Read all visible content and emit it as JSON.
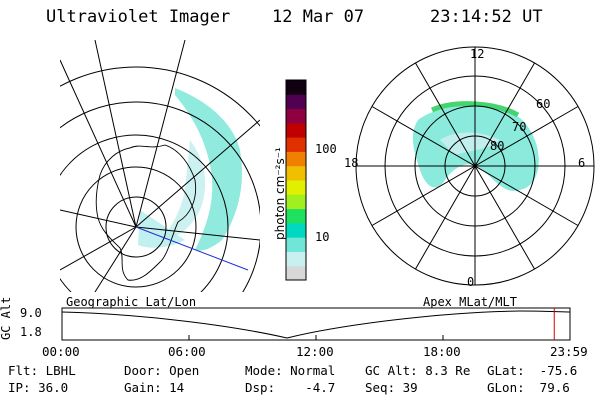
{
  "header": {
    "instrument": "Ultraviolet Imager",
    "date": "12 Mar 07",
    "time": "23:14:52 UT"
  },
  "colorbar": {
    "unit_label": "photon cm⁻²s⁻¹",
    "ticks": [
      "100",
      "10"
    ],
    "scale": "log",
    "colors": [
      "#d8d8d8",
      "#c8f0f0",
      "#70e6d8",
      "#00d8c0",
      "#20e060",
      "#a0f020",
      "#e0f000",
      "#f0c000",
      "#f08000",
      "#e03000",
      "#c00000",
      "#900040",
      "#500050",
      "#100010"
    ]
  },
  "left_map": {
    "caption": "Geographic Lat/Lon",
    "aurora_color": "#7de8d8"
  },
  "right_map": {
    "caption": "Apex MLat/MLT",
    "mlt_labels": {
      "top": "12",
      "bottom": "0",
      "left": "18",
      "right": "6"
    },
    "lat_labels": [
      "60",
      "70",
      "80"
    ],
    "aurora_color": "#7de8d8",
    "edge_color": "#30d060"
  },
  "altitude_plot": {
    "ylabel": "GC Alt",
    "y_ticks": [
      "9.0",
      "1.8"
    ],
    "x_ticks": [
      "00:00",
      "06:00",
      "12:00",
      "18:00",
      "23:59"
    ],
    "current_time_marker": 0.969,
    "marker_color": "#d00000"
  },
  "info": {
    "filter": "Flt: LBHL",
    "ip": "IP: 36.0",
    "door": "Door: Open",
    "gain": "Gain: 14",
    "mode": "Mode: Normal",
    "dsp": "Dsp:    -4.7",
    "gc_alt": "GC Alt: 8.3 Re",
    "seq": "Seq: 39",
    "glat": "GLat:  -75.6",
    "glon": "GLon:  79.6"
  }
}
